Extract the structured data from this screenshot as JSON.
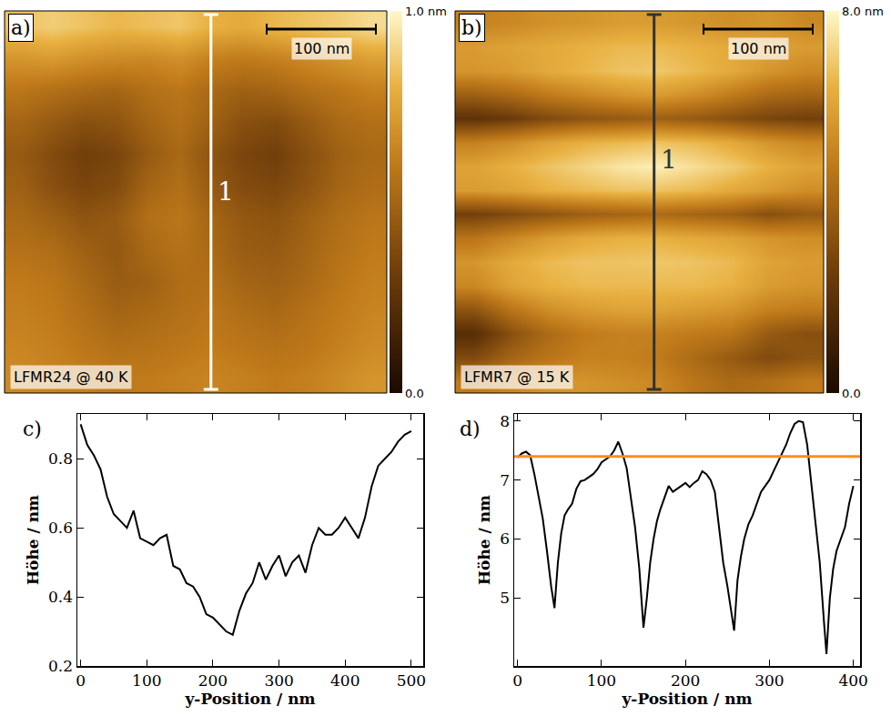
{
  "chart_data": [
    {
      "panel": "a)",
      "type": "heatmap",
      "sample_label": "LFMR24 @ 40 K",
      "scale_bar": "100 nm",
      "profile_line": {
        "label": "1",
        "color": "#ffffff"
      },
      "tick_labels": false,
      "zlim": [
        0,
        1
      ],
      "zticks": [
        {
          "value": 0,
          "label": "0.0"
        },
        {
          "value": 1,
          "label": "1.0 nm"
        }
      ],
      "z": [
        [
          0.85,
          0.88,
          0.85,
          0.82,
          0.84,
          0.86,
          0.8,
          0.78,
          0.82,
          0.85,
          0.88,
          0.92
        ],
        [
          0.7,
          0.72,
          0.68,
          0.66,
          0.65,
          0.68,
          0.62,
          0.6,
          0.62,
          0.66,
          0.7,
          0.74
        ],
        [
          0.58,
          0.55,
          0.52,
          0.5,
          0.55,
          0.58,
          0.52,
          0.48,
          0.5,
          0.55,
          0.58,
          0.62
        ],
        [
          0.5,
          0.45,
          0.4,
          0.42,
          0.5,
          0.55,
          0.48,
          0.4,
          0.38,
          0.45,
          0.52,
          0.55
        ],
        [
          0.45,
          0.38,
          0.32,
          0.35,
          0.45,
          0.52,
          0.42,
          0.35,
          0.32,
          0.4,
          0.48,
          0.52
        ],
        [
          0.48,
          0.4,
          0.35,
          0.38,
          0.5,
          0.55,
          0.45,
          0.38,
          0.36,
          0.42,
          0.5,
          0.54
        ],
        [
          0.52,
          0.48,
          0.42,
          0.45,
          0.55,
          0.58,
          0.5,
          0.44,
          0.42,
          0.48,
          0.54,
          0.58
        ],
        [
          0.56,
          0.54,
          0.48,
          0.44,
          0.52,
          0.56,
          0.52,
          0.46,
          0.45,
          0.5,
          0.56,
          0.6
        ],
        [
          0.6,
          0.58,
          0.52,
          0.46,
          0.48,
          0.54,
          0.55,
          0.5,
          0.48,
          0.52,
          0.58,
          0.62
        ],
        [
          0.62,
          0.6,
          0.55,
          0.5,
          0.52,
          0.55,
          0.58,
          0.54,
          0.52,
          0.56,
          0.6,
          0.64
        ],
        [
          0.64,
          0.62,
          0.58,
          0.55,
          0.56,
          0.58,
          0.6,
          0.58,
          0.56,
          0.58,
          0.62,
          0.66
        ],
        [
          0.66,
          0.64,
          0.62,
          0.6,
          0.6,
          0.62,
          0.64,
          0.62,
          0.6,
          0.62,
          0.66,
          0.7
        ]
      ]
    },
    {
      "panel": "b)",
      "type": "heatmap",
      "sample_label": "LFMR7 @ 15 K",
      "scale_bar": "100 nm",
      "profile_line": {
        "label": "1",
        "color": "#333333"
      },
      "tick_labels": false,
      "zlim": [
        0,
        8
      ],
      "zticks": [
        {
          "value": 0,
          "label": "0.0"
        },
        {
          "value": 8,
          "label": "8.0 nm"
        }
      ],
      "z": [
        [
          5.0,
          5.2,
          5.5,
          5.6,
          5.8,
          5.8,
          5.6,
          5.4,
          5.6,
          5.2
        ],
        [
          5.8,
          6.0,
          6.2,
          6.4,
          6.6,
          6.6,
          6.4,
          6.2,
          6.0,
          5.8
        ],
        [
          5.6,
          5.8,
          6.2,
          6.5,
          6.8,
          6.9,
          6.6,
          6.2,
          5.6,
          5.2
        ],
        [
          3.8,
          4.2,
          4.8,
          5.2,
          5.6,
          5.8,
          5.4,
          4.8,
          4.2,
          4.0
        ],
        [
          2.0,
          2.4,
          3.0,
          3.4,
          3.6,
          3.8,
          3.6,
          3.2,
          2.8,
          2.6
        ],
        [
          5.0,
          5.4,
          6.0,
          6.4,
          6.6,
          6.8,
          6.6,
          6.2,
          5.6,
          5.2
        ],
        [
          6.0,
          6.4,
          6.8,
          7.2,
          7.6,
          7.8,
          7.4,
          7.0,
          6.4,
          6.0
        ],
        [
          5.8,
          6.0,
          6.4,
          6.6,
          6.8,
          6.8,
          6.6,
          6.2,
          5.8,
          5.4
        ],
        [
          2.6,
          3.0,
          3.4,
          3.8,
          4.0,
          4.2,
          4.0,
          3.8,
          3.2,
          3.6
        ],
        [
          4.6,
          5.2,
          5.8,
          6.2,
          6.4,
          6.4,
          6.2,
          6.0,
          5.6,
          5.4
        ],
        [
          5.6,
          6.2,
          6.6,
          6.8,
          6.8,
          6.9,
          6.8,
          6.6,
          6.0,
          5.8
        ],
        [
          5.2,
          6.0,
          6.4,
          6.6,
          6.6,
          6.6,
          6.6,
          6.4,
          5.8,
          5.6
        ],
        [
          3.4,
          4.6,
          5.4,
          5.8,
          6.0,
          6.0,
          5.8,
          5.6,
          5.0,
          4.8
        ],
        [
          1.8,
          3.2,
          4.2,
          4.8,
          5.0,
          5.0,
          4.8,
          4.6,
          3.6,
          3.2
        ],
        [
          3.0,
          4.0,
          4.6,
          5.0,
          5.0,
          4.8,
          4.2,
          3.6,
          3.0,
          3.4
        ],
        [
          4.8,
          5.2,
          5.6,
          5.6,
          5.4,
          5.2,
          4.6,
          4.2,
          4.4,
          4.8
        ]
      ]
    },
    {
      "panel": "c)",
      "type": "line",
      "x_label": "y-Position / nm",
      "y_label": "Höhe / nm",
      "color": "#000000",
      "xlim": [
        -5,
        518
      ],
      "ylim": [
        0.2,
        0.93
      ],
      "xticks": [
        0,
        100,
        200,
        300,
        400,
        500
      ],
      "yticks": [
        0.2,
        0.4,
        0.6,
        0.8
      ],
      "x": [
        0,
        10,
        20,
        30,
        40,
        50,
        60,
        70,
        80,
        90,
        100,
        110,
        120,
        130,
        140,
        150,
        160,
        170,
        180,
        190,
        200,
        210,
        220,
        230,
        240,
        250,
        260,
        270,
        280,
        290,
        300,
        310,
        320,
        330,
        340,
        350,
        360,
        370,
        380,
        390,
        400,
        410,
        420,
        430,
        440,
        450,
        460,
        470,
        480,
        490,
        500
      ],
      "values": [
        0.9,
        0.84,
        0.81,
        0.77,
        0.69,
        0.64,
        0.62,
        0.6,
        0.65,
        0.57,
        0.56,
        0.55,
        0.57,
        0.58,
        0.49,
        0.48,
        0.44,
        0.43,
        0.4,
        0.35,
        0.34,
        0.32,
        0.3,
        0.29,
        0.36,
        0.41,
        0.44,
        0.5,
        0.45,
        0.49,
        0.52,
        0.46,
        0.5,
        0.52,
        0.47,
        0.55,
        0.6,
        0.58,
        0.58,
        0.6,
        0.63,
        0.6,
        0.57,
        0.63,
        0.72,
        0.78,
        0.8,
        0.82,
        0.85,
        0.87,
        0.88
      ]
    },
    {
      "panel": "d)",
      "type": "line",
      "x_label": "y-Position / nm",
      "y_label": "Höhe / nm",
      "color": "#000000",
      "xlim": [
        -4,
        408
      ],
      "ylim": [
        3.85,
        8.12
      ],
      "xticks": [
        0,
        100,
        200,
        300,
        400
      ],
      "yticks": [
        5,
        6,
        7,
        8
      ],
      "reference_line": {
        "value": 7.4,
        "color": "#ff8c1a"
      },
      "x": [
        0,
        5,
        10,
        15,
        20,
        25,
        30,
        35,
        40,
        44,
        48,
        52,
        56,
        60,
        65,
        70,
        75,
        80,
        85,
        90,
        95,
        100,
        105,
        110,
        115,
        120,
        125,
        130,
        135,
        140,
        145,
        150,
        154,
        158,
        162,
        166,
        170,
        175,
        180,
        185,
        190,
        195,
        200,
        205,
        210,
        215,
        220,
        225,
        230,
        235,
        240,
        245,
        250,
        254,
        258,
        262,
        266,
        270,
        275,
        280,
        285,
        290,
        295,
        300,
        305,
        310,
        315,
        320,
        325,
        330,
        335,
        340,
        345,
        350,
        355,
        360,
        365,
        368,
        372,
        376,
        380,
        385,
        390,
        395,
        400
      ],
      "values": [
        7.38,
        7.45,
        7.48,
        7.42,
        7.1,
        6.7,
        6.35,
        5.8,
        5.2,
        4.83,
        5.6,
        6.1,
        6.4,
        6.5,
        6.6,
        6.85,
        6.98,
        7.0,
        7.05,
        7.1,
        7.18,
        7.3,
        7.35,
        7.4,
        7.5,
        7.65,
        7.45,
        7.2,
        6.7,
        6.2,
        5.5,
        4.5,
        5.0,
        5.6,
        6.0,
        6.3,
        6.5,
        6.7,
        6.9,
        6.8,
        6.85,
        6.9,
        6.95,
        6.88,
        6.95,
        7.0,
        7.15,
        7.1,
        7.0,
        6.8,
        6.2,
        5.6,
        5.2,
        4.8,
        4.45,
        5.3,
        5.7,
        6.0,
        6.25,
        6.4,
        6.6,
        6.8,
        6.9,
        7.0,
        7.15,
        7.3,
        7.45,
        7.6,
        7.8,
        7.95,
        8.0,
        7.98,
        7.6,
        6.9,
        6.3,
        5.6,
        4.6,
        4.05,
        5.0,
        5.5,
        5.8,
        6.0,
        6.2,
        6.6,
        6.9
      ]
    }
  ]
}
